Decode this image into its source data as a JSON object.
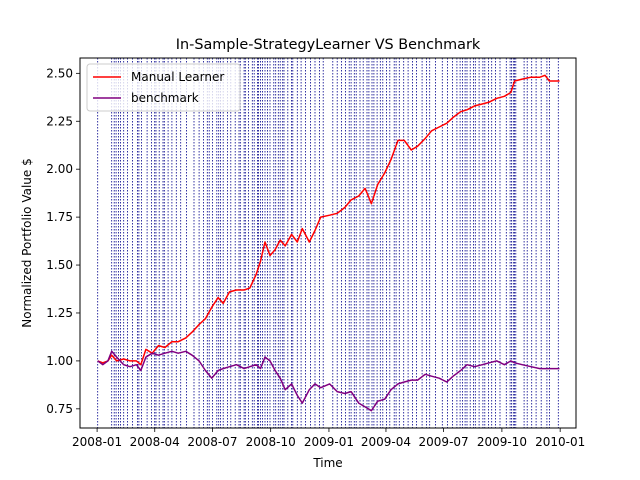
{
  "chart_data": {
    "type": "line",
    "title": "In-Sample-StrategyLearner VS Benchmark",
    "xlabel": "Time",
    "ylabel": "Normalized Portfolio Value $",
    "xlim": [
      "2007-12-05",
      "2010-01-26"
    ],
    "ylim": [
      0.65,
      2.58
    ],
    "x_ticks": [
      "2008-01",
      "2008-04",
      "2008-07",
      "2008-10",
      "2009-01",
      "2009-04",
      "2009-07",
      "2009-10",
      "2010-01"
    ],
    "y_ticks": [
      "0.75",
      "1.00",
      "1.25",
      "1.50",
      "1.75",
      "2.00",
      "2.25",
      "2.50"
    ],
    "grid": false,
    "legend_position": "top-left",
    "series": [
      {
        "name": "Manual Learner",
        "color": "#ff0000",
        "points": [
          [
            "2008-01-02",
            1.0
          ],
          [
            "2008-01-10",
            0.99
          ],
          [
            "2008-01-18",
            1.0
          ],
          [
            "2008-01-24",
            1.03
          ],
          [
            "2008-02-01",
            1.0
          ],
          [
            "2008-02-12",
            1.01
          ],
          [
            "2008-02-22",
            1.0
          ],
          [
            "2008-03-03",
            1.0
          ],
          [
            "2008-03-10",
            0.98
          ],
          [
            "2008-03-18",
            1.06
          ],
          [
            "2008-03-28",
            1.04
          ],
          [
            "2008-04-07",
            1.08
          ],
          [
            "2008-04-17",
            1.07
          ],
          [
            "2008-04-28",
            1.1
          ],
          [
            "2008-05-08",
            1.1
          ],
          [
            "2008-05-20",
            1.12
          ],
          [
            "2008-05-30",
            1.15
          ],
          [
            "2008-06-10",
            1.19
          ],
          [
            "2008-06-20",
            1.22
          ],
          [
            "2008-06-30",
            1.28
          ],
          [
            "2008-07-10",
            1.33
          ],
          [
            "2008-07-18",
            1.3
          ],
          [
            "2008-07-28",
            1.36
          ],
          [
            "2008-08-08",
            1.37
          ],
          [
            "2008-08-20",
            1.37
          ],
          [
            "2008-08-29",
            1.38
          ],
          [
            "2008-09-08",
            1.45
          ],
          [
            "2008-09-15",
            1.52
          ],
          [
            "2008-09-22",
            1.62
          ],
          [
            "2008-09-30",
            1.55
          ],
          [
            "2008-10-08",
            1.58
          ],
          [
            "2008-10-16",
            1.63
          ],
          [
            "2008-10-24",
            1.6
          ],
          [
            "2008-11-03",
            1.66
          ],
          [
            "2008-11-12",
            1.62
          ],
          [
            "2008-11-20",
            1.69
          ],
          [
            "2008-12-01",
            1.62
          ],
          [
            "2008-12-10",
            1.68
          ],
          [
            "2008-12-19",
            1.75
          ],
          [
            "2009-01-02",
            1.76
          ],
          [
            "2009-01-14",
            1.77
          ],
          [
            "2009-01-26",
            1.8
          ],
          [
            "2009-02-05",
            1.84
          ],
          [
            "2009-02-17",
            1.86
          ],
          [
            "2009-02-27",
            1.9
          ],
          [
            "2009-03-09",
            1.82
          ],
          [
            "2009-03-19",
            1.92
          ],
          [
            "2009-03-30",
            1.98
          ],
          [
            "2009-04-09",
            2.05
          ],
          [
            "2009-04-20",
            2.15
          ],
          [
            "2009-04-30",
            2.15
          ],
          [
            "2009-05-11",
            2.1
          ],
          [
            "2009-05-21",
            2.12
          ],
          [
            "2009-06-02",
            2.16
          ],
          [
            "2009-06-12",
            2.2
          ],
          [
            "2009-06-24",
            2.22
          ],
          [
            "2009-07-06",
            2.24
          ],
          [
            "2009-07-16",
            2.27
          ],
          [
            "2009-07-28",
            2.3
          ],
          [
            "2009-08-07",
            2.31
          ],
          [
            "2009-08-19",
            2.33
          ],
          [
            "2009-08-31",
            2.34
          ],
          [
            "2009-09-11",
            2.35
          ],
          [
            "2009-09-23",
            2.37
          ],
          [
            "2009-10-05",
            2.38
          ],
          [
            "2009-10-15",
            2.4
          ],
          [
            "2009-10-21",
            2.46
          ],
          [
            "2009-11-02",
            2.47
          ],
          [
            "2009-11-16",
            2.48
          ],
          [
            "2009-11-30",
            2.48
          ],
          [
            "2009-12-08",
            2.49
          ],
          [
            "2009-12-15",
            2.46
          ],
          [
            "2009-12-31",
            2.46
          ]
        ]
      },
      {
        "name": "benchmark",
        "color": "#800080",
        "points": [
          [
            "2008-01-02",
            1.0
          ],
          [
            "2008-01-10",
            0.98
          ],
          [
            "2008-01-18",
            1.0
          ],
          [
            "2008-01-24",
            1.05
          ],
          [
            "2008-02-01",
            1.02
          ],
          [
            "2008-02-12",
            0.98
          ],
          [
            "2008-02-22",
            0.97
          ],
          [
            "2008-03-03",
            0.98
          ],
          [
            "2008-03-10",
            0.95
          ],
          [
            "2008-03-18",
            1.02
          ],
          [
            "2008-03-28",
            1.04
          ],
          [
            "2008-04-07",
            1.03
          ],
          [
            "2008-04-17",
            1.04
          ],
          [
            "2008-04-28",
            1.05
          ],
          [
            "2008-05-08",
            1.04
          ],
          [
            "2008-05-20",
            1.05
          ],
          [
            "2008-05-30",
            1.03
          ],
          [
            "2008-06-10",
            1.0
          ],
          [
            "2008-06-20",
            0.95
          ],
          [
            "2008-06-30",
            0.91
          ],
          [
            "2008-07-10",
            0.95
          ],
          [
            "2008-07-18",
            0.96
          ],
          [
            "2008-07-28",
            0.97
          ],
          [
            "2008-08-08",
            0.98
          ],
          [
            "2008-08-20",
            0.96
          ],
          [
            "2008-08-29",
            0.97
          ],
          [
            "2008-09-08",
            0.98
          ],
          [
            "2008-09-15",
            0.96
          ],
          [
            "2008-09-22",
            1.02
          ],
          [
            "2008-09-30",
            1.0
          ],
          [
            "2008-10-08",
            0.95
          ],
          [
            "2008-10-16",
            0.91
          ],
          [
            "2008-10-24",
            0.85
          ],
          [
            "2008-11-03",
            0.88
          ],
          [
            "2008-11-12",
            0.82
          ],
          [
            "2008-11-20",
            0.78
          ],
          [
            "2008-12-01",
            0.85
          ],
          [
            "2008-12-10",
            0.88
          ],
          [
            "2008-12-19",
            0.86
          ],
          [
            "2009-01-02",
            0.88
          ],
          [
            "2009-01-14",
            0.84
          ],
          [
            "2009-01-26",
            0.83
          ],
          [
            "2009-02-05",
            0.84
          ],
          [
            "2009-02-17",
            0.78
          ],
          [
            "2009-02-27",
            0.76
          ],
          [
            "2009-03-09",
            0.74
          ],
          [
            "2009-03-19",
            0.79
          ],
          [
            "2009-03-30",
            0.8
          ],
          [
            "2009-04-09",
            0.85
          ],
          [
            "2009-04-20",
            0.88
          ],
          [
            "2009-04-30",
            0.89
          ],
          [
            "2009-05-11",
            0.9
          ],
          [
            "2009-05-21",
            0.9
          ],
          [
            "2009-06-02",
            0.93
          ],
          [
            "2009-06-12",
            0.92
          ],
          [
            "2009-06-24",
            0.91
          ],
          [
            "2009-07-06",
            0.89
          ],
          [
            "2009-07-16",
            0.92
          ],
          [
            "2009-07-28",
            0.95
          ],
          [
            "2009-08-07",
            0.98
          ],
          [
            "2009-08-19",
            0.97
          ],
          [
            "2009-08-31",
            0.98
          ],
          [
            "2009-09-11",
            0.99
          ],
          [
            "2009-09-23",
            1.0
          ],
          [
            "2009-10-05",
            0.98
          ],
          [
            "2009-10-15",
            1.0
          ],
          [
            "2009-10-21",
            0.99
          ],
          [
            "2009-11-02",
            0.98
          ],
          [
            "2009-11-16",
            0.97
          ],
          [
            "2009-11-30",
            0.96
          ],
          [
            "2009-12-08",
            0.96
          ],
          [
            "2009-12-15",
            0.96
          ],
          [
            "2009-12-31",
            0.96
          ]
        ]
      }
    ],
    "vertical_lines": {
      "color": "#00008b",
      "style": "dashed",
      "dates": [
        "2008-01-02",
        "2008-01-24",
        "2008-01-28",
        "2008-01-31",
        "2008-02-04",
        "2008-02-07",
        "2008-02-12",
        "2008-02-18",
        "2008-02-26",
        "2008-03-05",
        "2008-03-07",
        "2008-03-11",
        "2008-03-20",
        "2008-03-27",
        "2008-04-01",
        "2008-04-03",
        "2008-04-08",
        "2008-04-14",
        "2008-04-16",
        "2008-04-22",
        "2008-04-28",
        "2008-05-05",
        "2008-05-12",
        "2008-05-21",
        "2008-06-02",
        "2008-06-10",
        "2008-06-17",
        "2008-06-23",
        "2008-06-26",
        "2008-07-01",
        "2008-07-08",
        "2008-07-11",
        "2008-07-14",
        "2008-07-18",
        "2008-07-25",
        "2008-07-30",
        "2008-08-06",
        "2008-08-12",
        "2008-08-14",
        "2008-08-20",
        "2008-08-22",
        "2008-08-27",
        "2008-09-02",
        "2008-09-05",
        "2008-09-10",
        "2008-09-12",
        "2008-09-15",
        "2008-09-18",
        "2008-09-22",
        "2008-09-26",
        "2008-09-30",
        "2008-10-06",
        "2008-10-09",
        "2008-10-13",
        "2008-10-16",
        "2008-10-20",
        "2008-10-22",
        "2008-10-28",
        "2008-11-03",
        "2008-11-05",
        "2008-11-12",
        "2008-11-18",
        "2008-11-25",
        "2008-12-03",
        "2008-12-10",
        "2008-12-17",
        "2008-12-23",
        "2009-01-07",
        "2009-01-14",
        "2009-01-21",
        "2009-01-27",
        "2009-02-02",
        "2009-02-05",
        "2009-02-10",
        "2009-02-13",
        "2009-02-19",
        "2009-02-24",
        "2009-03-02",
        "2009-03-05",
        "2009-03-10",
        "2009-03-13",
        "2009-03-18",
        "2009-03-23",
        "2009-03-27",
        "2009-04-02",
        "2009-04-07",
        "2009-04-14",
        "2009-04-17",
        "2009-04-22",
        "2009-04-29",
        "2009-05-06",
        "2009-05-13",
        "2009-05-19",
        "2009-05-28",
        "2009-06-04",
        "2009-06-09",
        "2009-06-18",
        "2009-06-29",
        "2009-07-07",
        "2009-07-15",
        "2009-07-22",
        "2009-07-27",
        "2009-07-31",
        "2009-08-04",
        "2009-08-07",
        "2009-08-12",
        "2009-08-17",
        "2009-08-20",
        "2009-08-26",
        "2009-09-01",
        "2009-09-04",
        "2009-09-10",
        "2009-09-15",
        "2009-09-21",
        "2009-09-28",
        "2009-10-08",
        "2009-10-14",
        "2009-10-16",
        "2009-10-19",
        "2009-10-21",
        "2009-10-23",
        "2009-11-05",
        "2009-11-10",
        "2009-11-17",
        "2009-11-24",
        "2009-12-02",
        "2009-12-11",
        "2009-12-15",
        "2009-12-29"
      ]
    }
  }
}
